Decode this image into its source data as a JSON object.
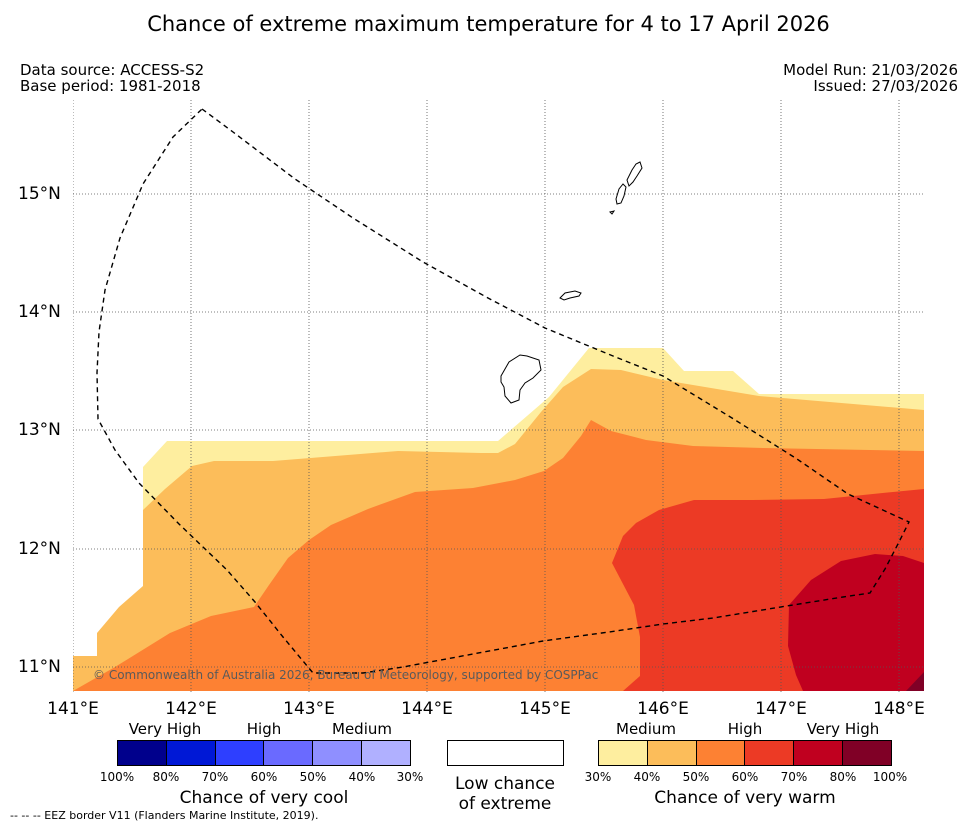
{
  "title": "Chance of extreme maximum temperature for 4 to 17 April 2026",
  "meta": {
    "data_source": "Data source: ACCESS-S2",
    "base_period": "Base period: 1981-2018",
    "model_run": "Model Run: 21/03/2026",
    "issued": "Issued: 27/03/2026"
  },
  "axes": {
    "lat_labels": [
      "15°N",
      "14°N",
      "13°N",
      "12°N",
      "11°N"
    ],
    "lon_labels": [
      "141°E",
      "142°E",
      "143°E",
      "144°E",
      "145°E",
      "146°E",
      "147°E",
      "148°E"
    ],
    "lon_range": [
      141.0,
      148.2
    ],
    "lat_range": [
      10.8,
      15.75
    ]
  },
  "map": {
    "copyright": "© Commonwealth of Australia 2026, Bureau of Meteorology, supported by COSPPac",
    "warm_categories": [
      {
        "label": "30-40%",
        "color": "#feee9f"
      },
      {
        "label": "40-50%",
        "color": "#fcbd5a"
      },
      {
        "label": "50-60%",
        "color": "#fd8133"
      },
      {
        "label": "60-70%",
        "color": "#ec3a25"
      },
      {
        "label": "70-80%",
        "color": "#c0001f"
      },
      {
        "label": "80-100%",
        "color": "#800026"
      }
    ]
  },
  "legend": {
    "cool": {
      "categories": [
        "Very High",
        "High",
        "Medium"
      ],
      "percents": [
        "100%",
        "80%",
        "70%",
        "60%",
        "50%",
        "40%",
        "30%"
      ],
      "colors": [
        "#00008c",
        "#0018d6",
        "#2e3fff",
        "#6a6aff",
        "#8f8fff",
        "#b0b0ff"
      ],
      "caption": "Chance of very cool"
    },
    "low": {
      "line1": "Low chance",
      "line2": "of extreme"
    },
    "warm": {
      "categories": [
        "Medium",
        "High",
        "Very High"
      ],
      "percents": [
        "30%",
        "40%",
        "50%",
        "60%",
        "70%",
        "80%",
        "100%"
      ],
      "colors": [
        "#feee9f",
        "#fcbd5a",
        "#fd8133",
        "#ec3a25",
        "#c0001f",
        "#800026"
      ],
      "caption": "Chance of very warm"
    }
  },
  "footnote": "--  --  -- EEZ border V11 (Flanders Marine Institute, 2019)."
}
